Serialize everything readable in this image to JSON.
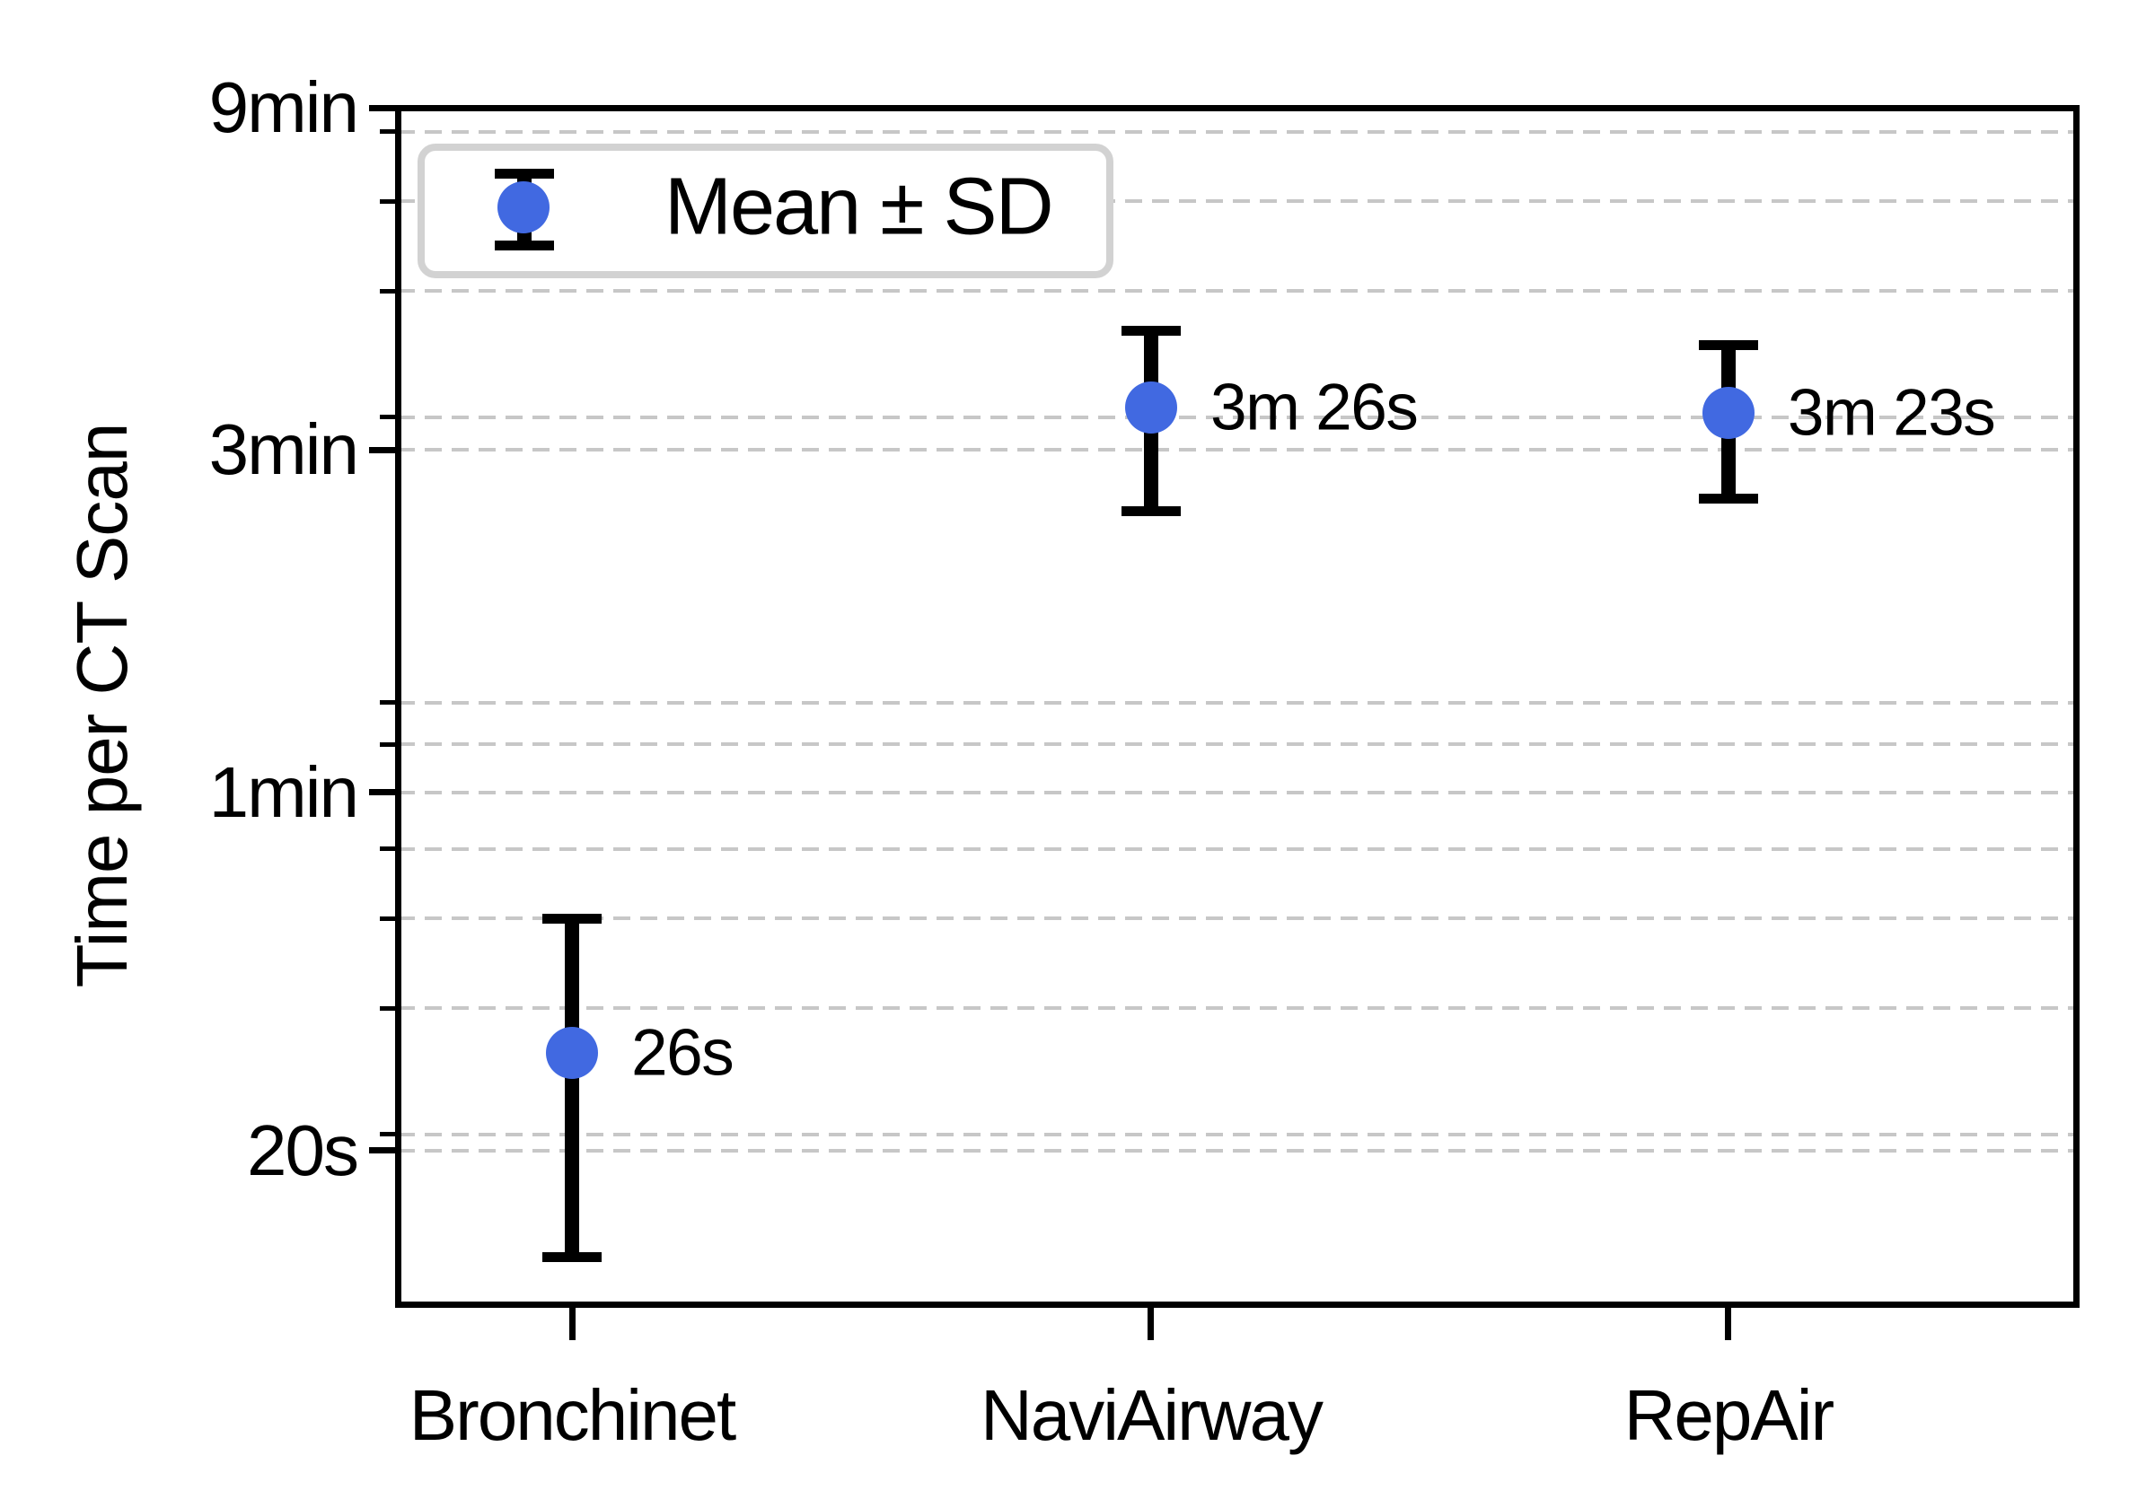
{
  "figure": {
    "background": "#ffffff"
  },
  "colors": {
    "marker_blue": "#4169e1",
    "errorbar_black": "#000000",
    "grid_gray": "#c7c7c7",
    "legend_border_gray": "#d2d2d2",
    "axis_black": "#000000"
  },
  "chart_data": {
    "type": "scatter",
    "subtype": "errorbar",
    "title": "",
    "xlabel": "",
    "ylabel": "Time per CT Scan",
    "yscale": "log",
    "grid": "dashed-horizontal",
    "legend": {
      "label": "Mean ± SD",
      "position": "upper-left"
    },
    "categories": [
      "Bronchinet",
      "NaviAirway",
      "RepAir"
    ],
    "points": [
      {
        "category": "Bronchinet",
        "mean_label": "26s",
        "mean_seconds": 26,
        "upper_seconds": 40,
        "lower_seconds": 13.5,
        "x_fraction": 0.1038
      },
      {
        "category": "NaviAirway",
        "mean_label": "3m 26s",
        "mean_seconds": 206,
        "upper_seconds": 264,
        "lower_seconds": 148,
        "x_fraction": 0.4489
      },
      {
        "category": "RepAir",
        "mean_label": "3m 23s",
        "mean_seconds": 203,
        "upper_seconds": 252,
        "lower_seconds": 154,
        "x_fraction": 0.7929
      }
    ],
    "y_major_ticks": [
      {
        "label": "9min",
        "seconds": 540,
        "render_seconds": 540
      },
      {
        "label": "3min",
        "seconds": 180,
        "render_seconds": 180
      },
      {
        "label": "1min",
        "seconds": 60,
        "render_seconds": 60
      },
      {
        "label": "20s",
        "seconds": 20,
        "render_seconds": 19
      }
    ],
    "y_minor_tick_seconds": [
      500,
      400,
      300,
      200,
      80,
      70,
      50,
      40,
      30,
      20
    ],
    "ylim_seconds": [
      11.6,
      540
    ]
  }
}
